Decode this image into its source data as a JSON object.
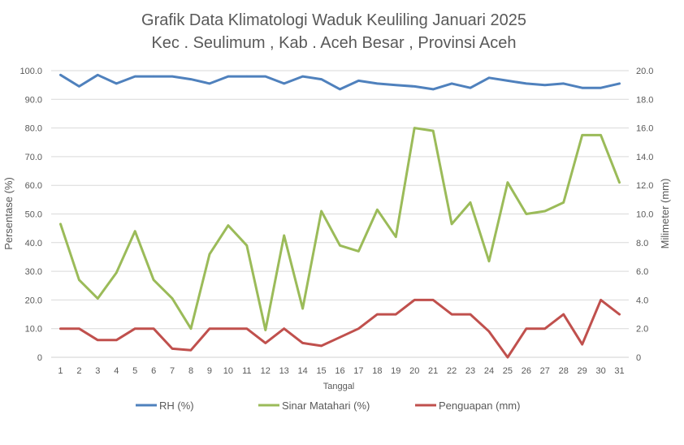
{
  "chart_data": {
    "type": "line",
    "title": "Grafik Data Klimatologi Waduk Keuliling Januari 2025",
    "subtitle": "Kec . Seulimum , Kab . Aceh Besar , Provinsi  Aceh",
    "xlabel": "Tanggal",
    "ylabel_left": "Persentase (%)",
    "ylabel_right": "Milimeter (mm)",
    "categories": [
      "1",
      "2",
      "3",
      "4",
      "5",
      "6",
      "7",
      "8",
      "9",
      "10",
      "11",
      "12",
      "13",
      "14",
      "15",
      "16",
      "17",
      "18",
      "19",
      "20",
      "21",
      "22",
      "23",
      "24",
      "25",
      "26",
      "27",
      "28",
      "29",
      "30",
      "31"
    ],
    "ylim_left": [
      0,
      100
    ],
    "ylim_right": [
      0,
      20
    ],
    "y_ticks_left": [
      "0",
      "10.0",
      "20.0",
      "30.0",
      "40.0",
      "50.0",
      "60.0",
      "70.0",
      "80.0",
      "90.0",
      "100.0"
    ],
    "y_ticks_right": [
      "0",
      "2.0",
      "4.0",
      "6.0",
      "8.0",
      "10.0",
      "12.0",
      "14.0",
      "16.0",
      "18.0",
      "20.0"
    ],
    "grid": true,
    "legend_position": "bottom",
    "series": [
      {
        "name": "RH (%)",
        "axis": "left",
        "color": "#4f81bd",
        "values": [
          98.5,
          94.5,
          98.5,
          95.5,
          98,
          98,
          98,
          97,
          95.5,
          98,
          98,
          98,
          95.5,
          98,
          97,
          93.5,
          96.5,
          95.5,
          95,
          94.5,
          93.5,
          95.5,
          94,
          97.5,
          96.5,
          95.5,
          95,
          95.5,
          94,
          94,
          95.5
        ]
      },
      {
        "name": "Sinar Matahari (%)",
        "axis": "left",
        "color": "#9bbb59",
        "values": [
          46.5,
          27,
          20.5,
          29.5,
          44,
          27,
          20.5,
          10,
          36,
          46,
          39,
          9.5,
          42.5,
          17,
          51,
          39,
          37,
          51.5,
          42,
          80,
          79,
          46.5,
          54,
          33.5,
          61,
          50,
          51,
          54,
          77.5,
          77.5,
          61
        ]
      },
      {
        "name": "Penguapan (mm)",
        "axis": "right",
        "color": "#c0504d",
        "values": [
          2,
          2,
          1.2,
          1.2,
          2,
          2,
          0.6,
          0.5,
          2,
          2,
          2,
          1,
          2,
          1,
          0.8,
          1.4,
          2,
          3,
          3,
          4,
          4,
          3,
          3,
          1.8,
          0,
          2,
          2,
          3,
          0.9,
          4,
          3
        ]
      }
    ]
  }
}
